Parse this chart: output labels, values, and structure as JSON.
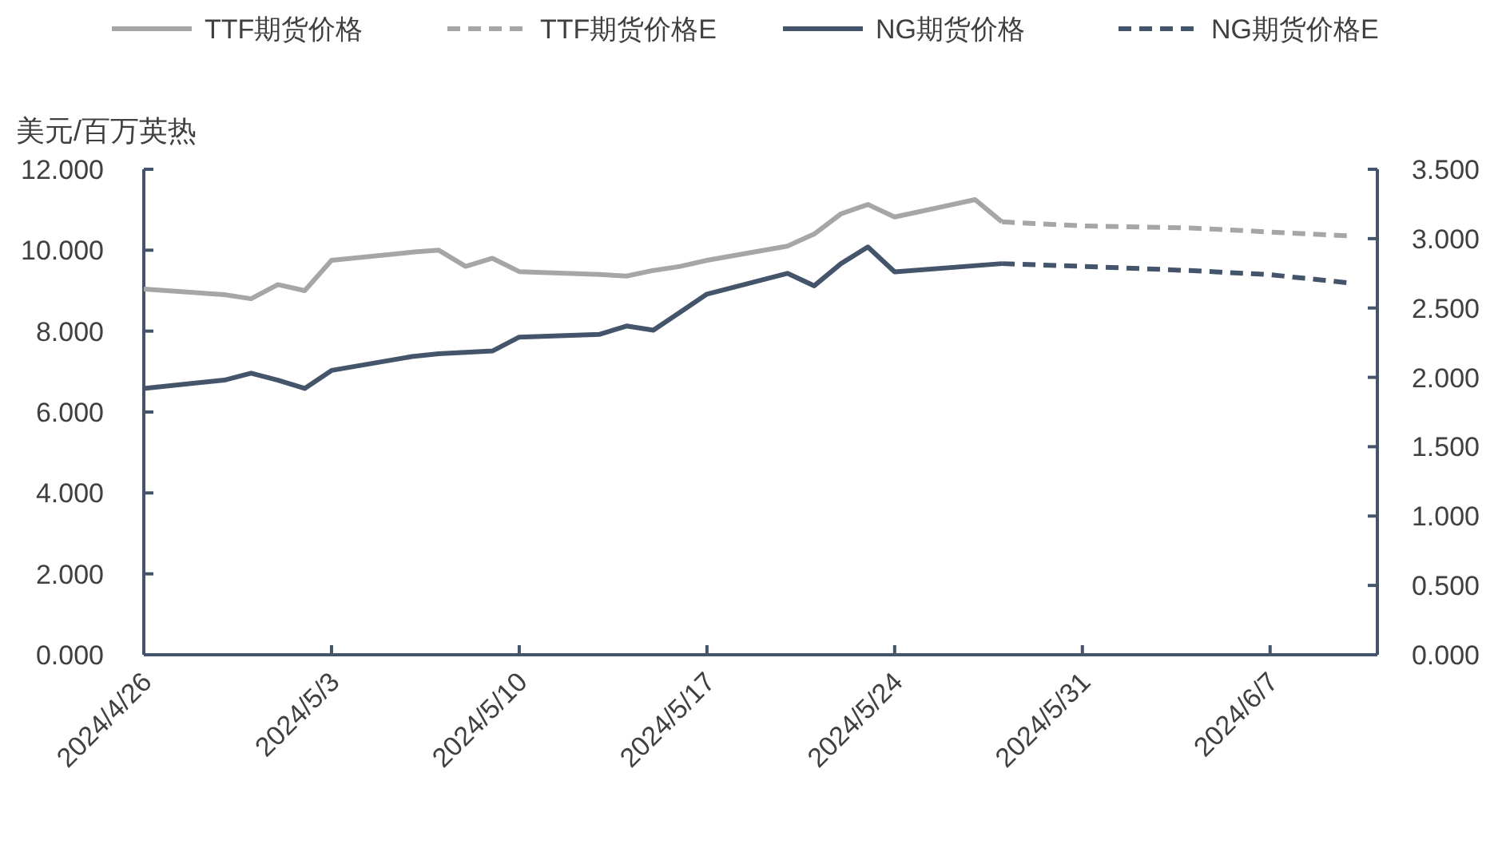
{
  "chart_data": {
    "type": "line",
    "ylabel": "美元/百万英热",
    "legend": "top",
    "grid": false,
    "marker": "none",
    "xlim": [
      "2024-04-26",
      "2024-06-11"
    ],
    "xticks": [
      {
        "value": "2024-04-26",
        "label": "2024/4/26"
      },
      {
        "value": "2024-05-03",
        "label": "2024/5/3"
      },
      {
        "value": "2024-05-10",
        "label": "2024/5/10"
      },
      {
        "value": "2024-05-17",
        "label": "2024/5/17"
      },
      {
        "value": "2024-05-24",
        "label": "2024/5/24"
      },
      {
        "value": "2024-05-31",
        "label": "2024/5/31"
      },
      {
        "value": "2024-06-07",
        "label": "2024/6/7"
      }
    ],
    "ylim": [
      0,
      12
    ],
    "yticks": [
      {
        "value": 0,
        "label": "0.000"
      },
      {
        "value": 2,
        "label": "2.000"
      },
      {
        "value": 4,
        "label": "4.000"
      },
      {
        "value": 6,
        "label": "6.000"
      },
      {
        "value": 8,
        "label": "8.000"
      },
      {
        "value": 10,
        "label": "10.000"
      },
      {
        "value": 12,
        "label": "12.000"
      }
    ],
    "y2lim": [
      0,
      3.5
    ],
    "y2ticks": [
      {
        "value": 0,
        "label": "0.000"
      },
      {
        "value": 0.5,
        "label": "0.500"
      },
      {
        "value": 1,
        "label": "1.000"
      },
      {
        "value": 1.5,
        "label": "1.500"
      },
      {
        "value": 2,
        "label": "2.000"
      },
      {
        "value": 2.5,
        "label": "2.500"
      },
      {
        "value": 3,
        "label": "3.000"
      },
      {
        "value": 3.5,
        "label": "3.500"
      }
    ],
    "series": [
      {
        "name": "TTF期货价格",
        "color": "#a6a6a6",
        "line_style": "solid",
        "x": [
          "2024-04-26",
          "2024-04-29",
          "2024-04-30",
          "2024-05-01",
          "2024-05-02",
          "2024-05-03",
          "2024-05-06",
          "2024-05-07",
          "2024-05-08",
          "2024-05-09",
          "2024-05-10",
          "2024-05-13",
          "2024-05-14",
          "2024-05-15",
          "2024-05-16",
          "2024-05-17",
          "2024-05-20",
          "2024-05-21",
          "2024-05-22",
          "2024-05-23",
          "2024-05-24",
          "2024-05-27",
          "2024-05-28"
        ],
        "values": [
          9.04,
          8.9,
          8.8,
          9.15,
          9.0,
          9.75,
          9.95,
          10.0,
          9.6,
          9.8,
          9.47,
          9.4,
          9.36,
          9.5,
          9.6,
          9.75,
          10.1,
          10.4,
          10.9,
          11.13,
          10.82,
          11.25,
          10.7
        ]
      },
      {
        "name": "TTF期货价格E",
        "color": "#a6a6a6",
        "line_style": "dashed",
        "x": [
          "2024-05-28",
          "2024-05-31",
          "2024-06-04",
          "2024-06-07",
          "2024-06-10"
        ],
        "values": [
          10.7,
          10.6,
          10.55,
          10.45,
          10.35
        ]
      },
      {
        "name": "NG期货价格",
        "color": "#44546a",
        "line_style": "solid",
        "axis": "y2",
        "x": [
          "2024-04-26",
          "2024-04-29",
          "2024-04-30",
          "2024-05-01",
          "2024-05-02",
          "2024-05-03",
          "2024-05-06",
          "2024-05-07",
          "2024-05-08",
          "2024-05-09",
          "2024-05-10",
          "2024-05-13",
          "2024-05-14",
          "2024-05-15",
          "2024-05-16",
          "2024-05-17",
          "2024-05-20",
          "2024-05-21",
          "2024-05-22",
          "2024-05-23",
          "2024-05-24",
          "2024-05-28"
        ],
        "values": [
          1.92,
          1.98,
          2.03,
          1.98,
          1.92,
          2.05,
          2.15,
          2.17,
          2.18,
          2.19,
          2.29,
          2.31,
          2.37,
          2.34,
          2.47,
          2.6,
          2.75,
          2.66,
          2.82,
          2.94,
          2.76,
          2.82
        ]
      },
      {
        "name": "NG期货价格E",
        "color": "#44546a",
        "line_style": "dashed",
        "axis": "y2",
        "x": [
          "2024-05-28",
          "2024-05-31",
          "2024-06-04",
          "2024-06-07",
          "2024-06-10"
        ],
        "values": [
          2.82,
          2.8,
          2.77,
          2.74,
          2.68
        ]
      }
    ]
  }
}
